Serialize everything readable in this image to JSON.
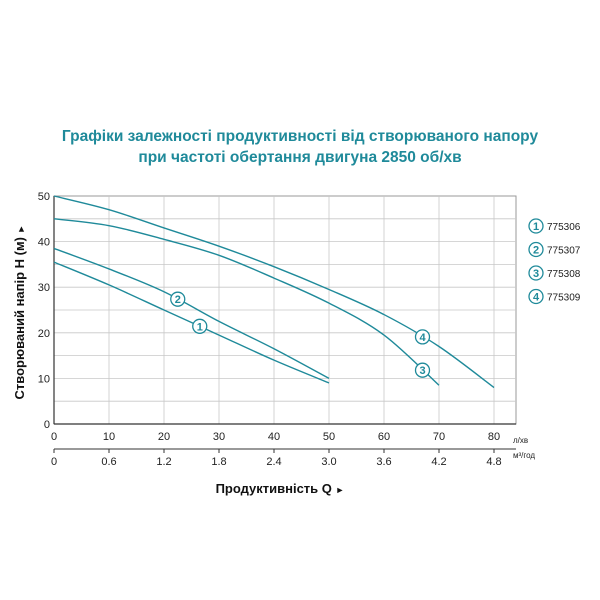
{
  "chart_data": {
    "type": "line",
    "title_lines": [
      "Графіки залежності продуктивності від створюваного напору",
      "при частоті обертання двигуна 2850 об/хв"
    ],
    "ylabel": "Створюваний напір H (м)",
    "y_arrow": "►",
    "xlabel": "Продуктивність Q",
    "x_arrow": "►",
    "x_unit_primary": "л/хв",
    "x_unit_secondary": "м³/год",
    "xlim": [
      0,
      84
    ],
    "ylim": [
      0,
      50
    ],
    "x_ticks": [
      "0",
      "10",
      "20",
      "30",
      "40",
      "50",
      "60",
      "70",
      "80"
    ],
    "x_ticks_secondary": [
      "0",
      "0.6",
      "1.2",
      "1.8",
      "2.4",
      "3.0",
      "3.6",
      "4.2",
      "4.8"
    ],
    "y_ticks": [
      "0",
      "10",
      "20",
      "30",
      "40",
      "50"
    ],
    "grid": true,
    "series": [
      {
        "name": "775306",
        "marker": "1",
        "marker_x": 26.5,
        "x": [
          0,
          10,
          20,
          30,
          40,
          50
        ],
        "y": [
          35.5,
          30.5,
          25,
          19.5,
          14,
          9
        ]
      },
      {
        "name": "775307",
        "marker": "2",
        "marker_x": 22.5,
        "x": [
          0,
          10,
          20,
          30,
          40,
          50
        ],
        "y": [
          38.5,
          34,
          29,
          22.5,
          16.5,
          10
        ]
      },
      {
        "name": "775308",
        "marker": "3",
        "marker_x": 67,
        "x": [
          0,
          10,
          20,
          30,
          40,
          50,
          60,
          70
        ],
        "y": [
          45,
          43.5,
          40.5,
          37,
          32,
          26.5,
          19.5,
          8.5
        ]
      },
      {
        "name": "775309",
        "marker": "4",
        "marker_x": 67,
        "x": [
          0,
          10,
          20,
          30,
          40,
          50,
          60,
          70,
          80
        ],
        "y": [
          50,
          47,
          43,
          39,
          34.5,
          29.5,
          24,
          17,
          8
        ]
      }
    ]
  },
  "colors": {
    "accent": "#1f8a9a",
    "grid": "#c8c8c8",
    "axis": "#333333"
  }
}
